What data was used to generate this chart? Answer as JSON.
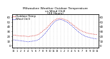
{
  "title": "Milwaukee Weather Outdoor Temperature\nvs Wind Chill\n(24 Hours)",
  "title_fontsize": 3.2,
  "background_color": "#ffffff",
  "temp_color": "#cc0000",
  "windchill_color": "#0000cc",
  "grid_color": "#888888",
  "x_hours": [
    0,
    1,
    2,
    3,
    4,
    5,
    6,
    7,
    8,
    9,
    10,
    11,
    12,
    13,
    14,
    15,
    16,
    17,
    18,
    19,
    20,
    21,
    22,
    23
  ],
  "x_labels": [
    "12",
    "1",
    "2",
    "3",
    "4",
    "5",
    "6",
    "7",
    "8",
    "9",
    "10",
    "11",
    "12",
    "1",
    "2",
    "3",
    "4",
    "5",
    "6",
    "7",
    "8",
    "9",
    "10",
    "11"
  ],
  "temp_values": [
    22,
    21,
    20,
    20,
    19,
    20,
    21,
    24,
    30,
    36,
    44,
    52,
    56,
    57,
    55,
    52,
    46,
    40,
    34,
    30,
    27,
    25,
    24,
    23
  ],
  "windchill_values": [
    12,
    11,
    10,
    9,
    8,
    9,
    10,
    13,
    20,
    28,
    38,
    48,
    53,
    55,
    52,
    48,
    42,
    35,
    28,
    23,
    19,
    17,
    15,
    14
  ],
  "ylim": [
    -5,
    65
  ],
  "yticks": [
    0,
    10,
    20,
    30,
    40,
    50,
    60
  ],
  "ytick_labels": [
    "0",
    "10",
    "20",
    "30",
    "40",
    "50",
    "60"
  ],
  "ytick_fontsize": 2.8,
  "xtick_fontsize": 2.5,
  "legend_entries": [
    "Outdoor Temp",
    "Wind Chill"
  ],
  "legend_fontsize": 2.8,
  "linewidth": 0.6,
  "grid_linewidth": 0.3
}
